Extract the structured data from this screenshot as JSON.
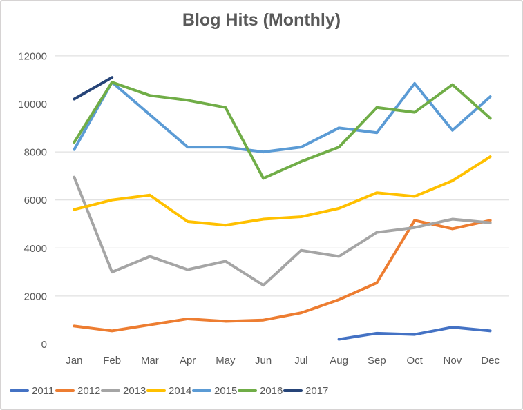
{
  "chart_data": {
    "type": "line",
    "title": "Blog Hits (Monthly)",
    "xlabel": "",
    "ylabel": "",
    "categories": [
      "Jan",
      "Feb",
      "Mar",
      "Apr",
      "May",
      "Jun",
      "Jul",
      "Aug",
      "Sep",
      "Oct",
      "Nov",
      "Dec"
    ],
    "series": [
      {
        "name": "2011",
        "color": "#4472C4",
        "values": [
          null,
          null,
          null,
          null,
          null,
          null,
          null,
          200,
          450,
          400,
          700,
          550
        ]
      },
      {
        "name": "2012",
        "color": "#ED7D31",
        "values": [
          750,
          550,
          800,
          1050,
          950,
          1000,
          1300,
          1850,
          2550,
          5150,
          4800,
          5150
        ]
      },
      {
        "name": "2013",
        "color": "#A5A5A5",
        "values": [
          6950,
          3000,
          3650,
          3100,
          3450,
          2450,
          3900,
          3650,
          4650,
          4850,
          5200,
          5050
        ]
      },
      {
        "name": "2014",
        "color": "#FFC000",
        "values": [
          5600,
          6000,
          6200,
          5100,
          4950,
          5200,
          5300,
          5650,
          6300,
          6150,
          6800,
          7800
        ]
      },
      {
        "name": "2015",
        "color": "#5B9BD5",
        "values": [
          8100,
          10900,
          9550,
          8200,
          8200,
          8000,
          8200,
          9000,
          8800,
          10850,
          8900,
          10300
        ]
      },
      {
        "name": "2016",
        "color": "#70AD47",
        "values": [
          8400,
          10900,
          10350,
          10150,
          9850,
          6900,
          7600,
          8200,
          9850,
          9650,
          10800,
          9400
        ]
      },
      {
        "name": "2017",
        "color": "#264478",
        "values": [
          10200,
          11100,
          null,
          null,
          null,
          null,
          null,
          null,
          null,
          null,
          null,
          null
        ]
      }
    ],
    "ylim": [
      0,
      12000
    ],
    "yticks": [
      0,
      2000,
      4000,
      6000,
      8000,
      10000,
      12000
    ],
    "grid": true,
    "legend_position": "bottom-left",
    "gridline_color": "#D9D9D9",
    "axis_text_color": "#595959",
    "title_color": "#595959"
  }
}
